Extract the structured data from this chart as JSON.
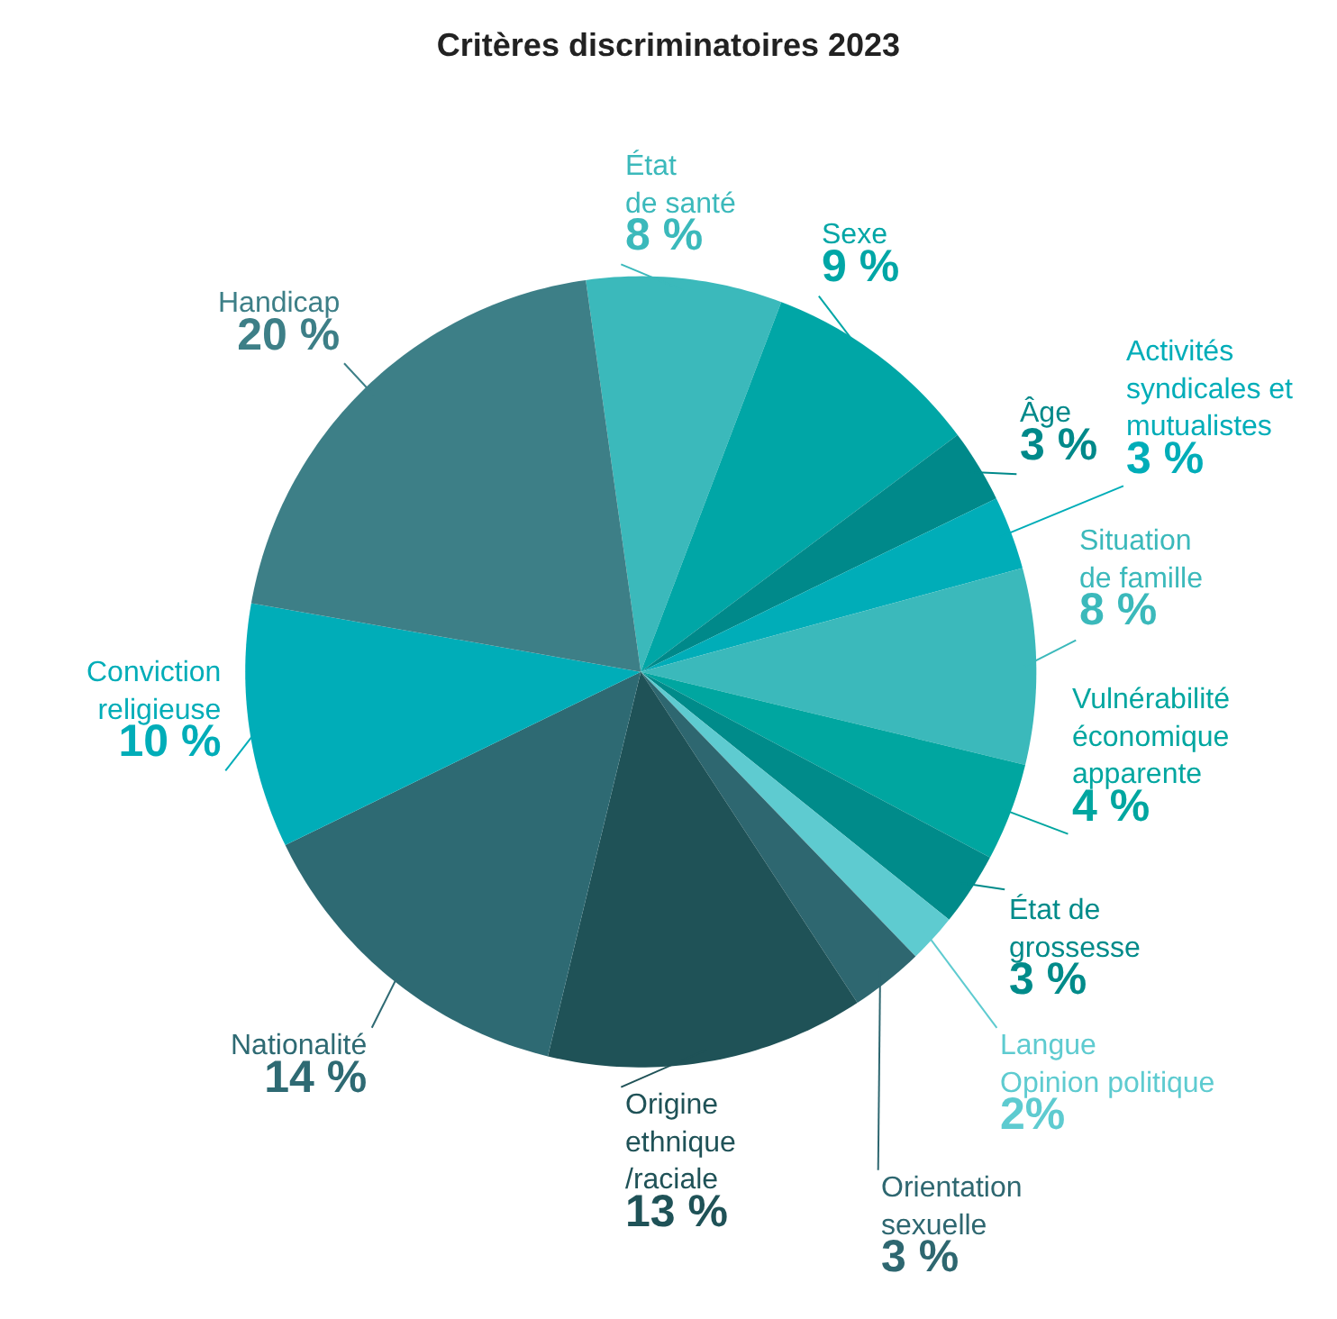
{
  "chart_data": {
    "type": "pie",
    "title": "Critères discriminatoires 2023",
    "categories": [
      "État\nde santé",
      "Sexe",
      "Âge",
      "Activités\nsyndicales et\nmutualistes",
      "Situation\nde famille",
      "Vulnérabilité\néconomique\napparente",
      "État de\ngrossesse",
      "Langue\nOpinion politique",
      "Orientation\nsexuelle",
      "Origine\nethnique\n/raciale",
      "Nationalité",
      "Conviction\nreligieuse",
      "Handicap"
    ],
    "values": [
      8,
      9,
      3,
      3,
      8,
      4,
      3,
      2,
      3,
      13,
      14,
      10,
      20
    ],
    "value_labels": [
      "8 %",
      "9 %",
      "3 %",
      "3 %",
      "8 %",
      "4 %",
      "3 %",
      "2%",
      "3 %",
      "13 %",
      "14 %",
      "10 %",
      "20 %"
    ],
    "colors": [
      "#3bb9bb",
      "#00a6a6",
      "#00898a",
      "#00adb8",
      "#3bb9bb",
      "#00a6a0",
      "#008b8a",
      "#5ecbd0",
      "#2e6770",
      "#1f5257",
      "#2e6a73",
      "#00adb8",
      "#3d7f87"
    ]
  }
}
